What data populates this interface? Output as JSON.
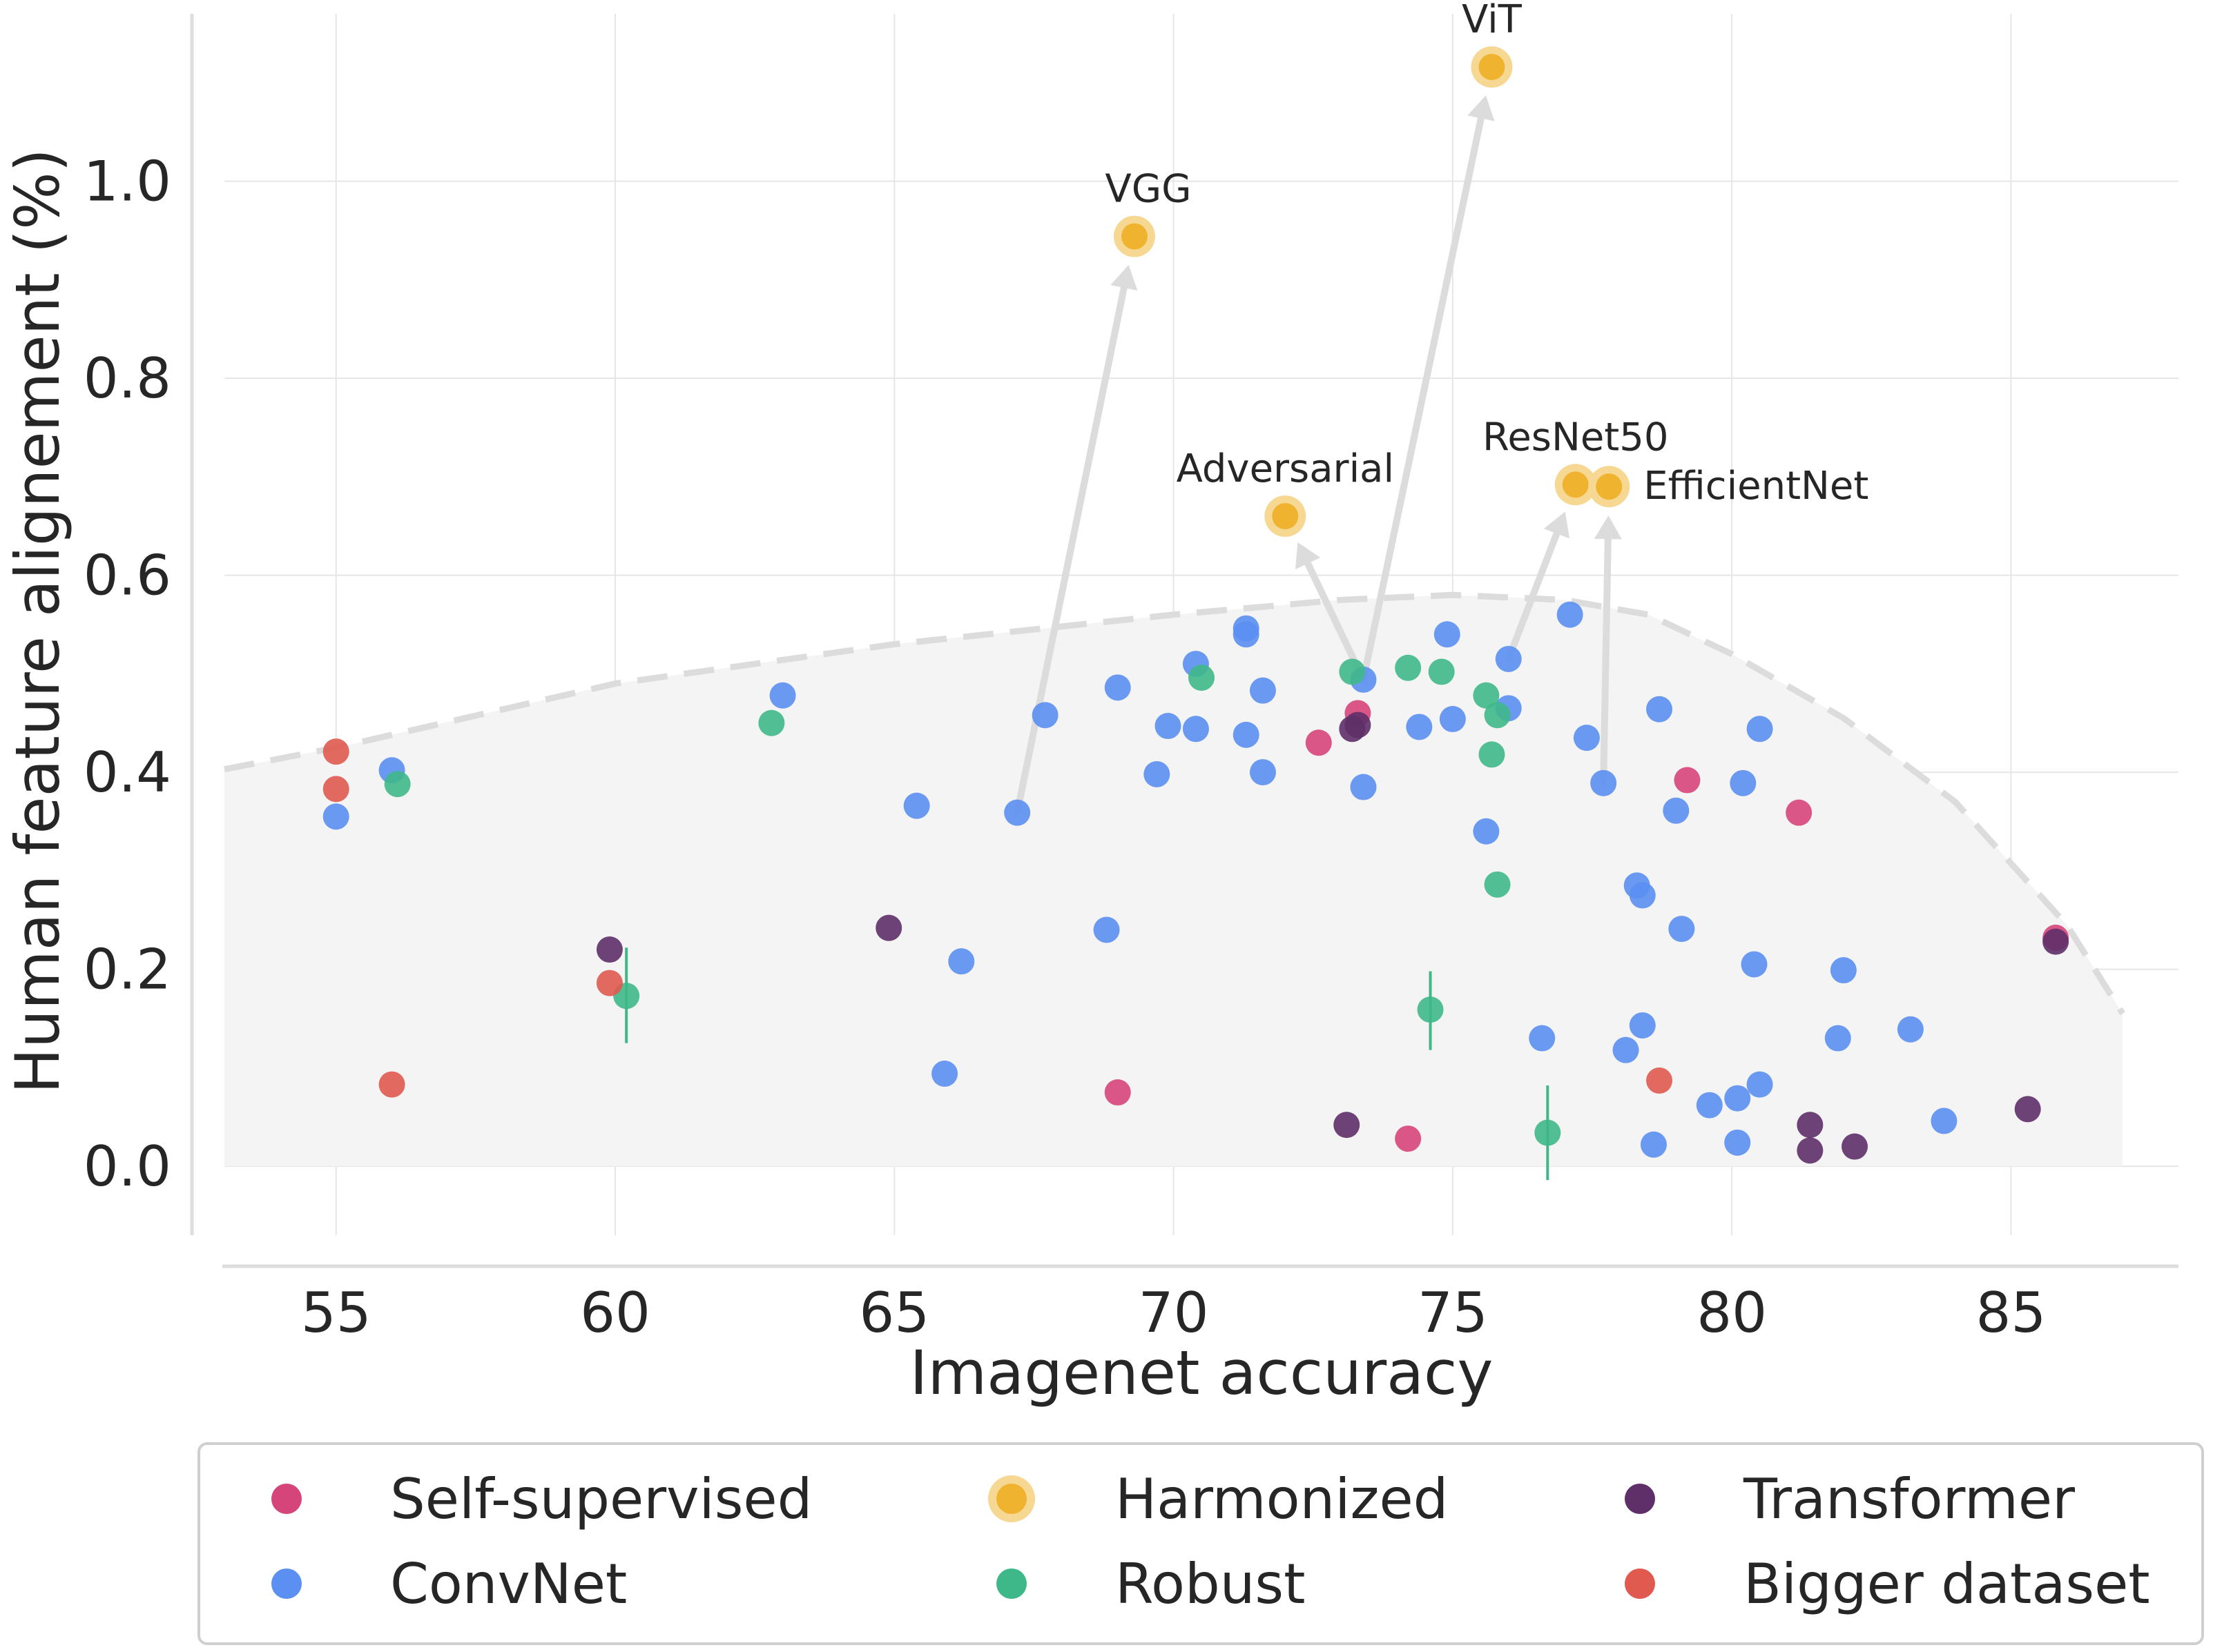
{
  "chart_data": {
    "type": "scatter",
    "xlabel": "Imagenet accuracy",
    "ylabel": "Human feature alignement (%)",
    "xlim": [
      53,
      88
    ],
    "ylim": [
      -0.07,
      1.17
    ],
    "x_ticks": [
      55,
      60,
      65,
      70,
      75,
      80,
      85
    ],
    "y_ticks": [
      0.0,
      0.2,
      0.4,
      0.6,
      0.8,
      1.0
    ],
    "x_tick_labels": [
      "55",
      "60",
      "65",
      "70",
      "75",
      "80",
      "85"
    ],
    "y_tick_labels": [
      "0.0",
      "0.2",
      "0.4",
      "0.6",
      "0.8",
      "1.0"
    ],
    "grid": true,
    "legend_position": "bottom",
    "series": [
      {
        "name": "Self-supervised",
        "color": "#d6457a",
        "points": [
          [
            72.6,
            0.43
          ],
          [
            73.3,
            0.46
          ],
          [
            79.2,
            0.392
          ],
          [
            81.2,
            0.359
          ],
          [
            69.0,
            0.075
          ],
          [
            74.2,
            0.028
          ],
          [
            85.8,
            0.232
          ]
        ]
      },
      {
        "name": "ConvNet",
        "color": "#5b8ff2",
        "points": [
          [
            55.0,
            0.355
          ],
          [
            56.0,
            0.402
          ],
          [
            63.0,
            0.478
          ],
          [
            65.4,
            0.366
          ],
          [
            66.2,
            0.208
          ],
          [
            65.9,
            0.094
          ],
          [
            67.2,
            0.359
          ],
          [
            67.7,
            0.458
          ],
          [
            68.8,
            0.24
          ],
          [
            69.0,
            0.486
          ],
          [
            69.9,
            0.447
          ],
          [
            69.7,
            0.398
          ],
          [
            70.4,
            0.51
          ],
          [
            70.4,
            0.444
          ],
          [
            71.3,
            0.546
          ],
          [
            71.3,
            0.54
          ],
          [
            71.3,
            0.438
          ],
          [
            71.6,
            0.483
          ],
          [
            71.6,
            0.4
          ],
          [
            73.4,
            0.494
          ],
          [
            73.4,
            0.385
          ],
          [
            74.4,
            0.446
          ],
          [
            74.9,
            0.54
          ],
          [
            75.0,
            0.454
          ],
          [
            75.6,
            0.34
          ],
          [
            76.0,
            0.515
          ],
          [
            76.0,
            0.465
          ],
          [
            76.6,
            0.13
          ],
          [
            77.1,
            0.56
          ],
          [
            77.4,
            0.435
          ],
          [
            77.7,
            0.389
          ],
          [
            78.1,
            0.118
          ],
          [
            78.3,
            0.285
          ],
          [
            78.4,
            0.275
          ],
          [
            78.4,
            0.143
          ],
          [
            78.6,
            0.022
          ],
          [
            78.7,
            0.464
          ],
          [
            79.0,
            0.361
          ],
          [
            79.1,
            0.241
          ],
          [
            79.6,
            0.062
          ],
          [
            80.1,
            0.069
          ],
          [
            80.2,
            0.389
          ],
          [
            80.1,
            0.024
          ],
          [
            80.4,
            0.205
          ],
          [
            80.5,
            0.444
          ],
          [
            80.5,
            0.083
          ],
          [
            81.9,
            0.13
          ],
          [
            82.0,
            0.199
          ],
          [
            83.2,
            0.139
          ],
          [
            83.8,
            0.046
          ]
        ]
      },
      {
        "name": "Harmonized",
        "color": "#f0b330",
        "points": [
          [
            69.3,
            0.944
          ],
          [
            75.7,
            1.116
          ],
          [
            72.0,
            0.66
          ],
          [
            77.2,
            0.692
          ],
          [
            77.8,
            0.69
          ]
        ]
      },
      {
        "name": "Robust",
        "color": "#3fb889",
        "points": [
          [
            56.1,
            0.388
          ],
          [
            62.8,
            0.45
          ],
          [
            60.2,
            0.173
          ],
          [
            70.5,
            0.496
          ],
          [
            73.2,
            0.502
          ],
          [
            74.2,
            0.506
          ],
          [
            74.8,
            0.502
          ],
          [
            75.6,
            0.478
          ],
          [
            75.7,
            0.418
          ],
          [
            75.8,
            0.458
          ],
          [
            75.8,
            0.286
          ],
          [
            74.6,
            0.159
          ],
          [
            76.7,
            0.034
          ]
        ]
      },
      {
        "name": "Transformer",
        "color": "#5e2f68",
        "points": [
          [
            59.9,
            0.22
          ],
          [
            64.9,
            0.242
          ],
          [
            73.1,
            0.042
          ],
          [
            73.2,
            0.444
          ],
          [
            73.3,
            0.448
          ],
          [
            81.4,
            0.042
          ],
          [
            81.4,
            0.016
          ],
          [
            82.2,
            0.02
          ],
          [
            85.3,
            0.058
          ],
          [
            85.8,
            0.228
          ]
        ]
      },
      {
        "name": "Bigger dataset",
        "color": "#e05a50",
        "points": [
          [
            55.0,
            0.421
          ],
          [
            55.0,
            0.383
          ],
          [
            56.0,
            0.083
          ],
          [
            59.9,
            0.186
          ],
          [
            78.7,
            0.087
          ]
        ]
      }
    ],
    "error_bars": [
      {
        "x": 60.2,
        "y_low": 0.125,
        "y_high": 0.222,
        "color": "#3fb889"
      },
      {
        "x": 74.6,
        "y_low": 0.118,
        "y_high": 0.198,
        "color": "#3fb889"
      },
      {
        "x": 76.7,
        "y_low": -0.014,
        "y_high": 0.082,
        "color": "#3fb889"
      }
    ],
    "annotations": [
      {
        "text": "VGG",
        "x": 69.3,
        "y": 0.944,
        "label_pos": "above"
      },
      {
        "text": "ViT",
        "x": 75.7,
        "y": 1.116,
        "label_pos": "above"
      },
      {
        "text": "Adversarial",
        "x": 72.0,
        "y": 0.66,
        "label_pos": "above"
      },
      {
        "text": "ResNet50",
        "x": 77.2,
        "y": 0.692,
        "label_pos": "above"
      },
      {
        "text": "EfficientNet",
        "x": 77.8,
        "y": 0.69,
        "label_pos": "right"
      }
    ],
    "arrows": [
      {
        "from": [
          67.2,
          0.359
        ],
        "to": [
          69.3,
          0.944
        ]
      },
      {
        "from": [
          73.4,
          0.494
        ],
        "to": [
          75.7,
          1.116
        ]
      },
      {
        "from": [
          73.4,
          0.494
        ],
        "to": [
          72.0,
          0.66
        ]
      },
      {
        "from": [
          76.0,
          0.515
        ],
        "to": [
          77.2,
          0.692
        ]
      },
      {
        "from": [
          77.7,
          0.389
        ],
        "to": [
          77.8,
          0.69
        ]
      }
    ],
    "frontier": [
      [
        53,
        0.403
      ],
      [
        55,
        0.425
      ],
      [
        60,
        0.49
      ],
      [
        65,
        0.53
      ],
      [
        70,
        0.56
      ],
      [
        73,
        0.575
      ],
      [
        75,
        0.58
      ],
      [
        77,
        0.575
      ],
      [
        78.5,
        0.56
      ],
      [
        80,
        0.52
      ],
      [
        82,
        0.455
      ],
      [
        84,
        0.37
      ],
      [
        86,
        0.245
      ],
      [
        87,
        0.155
      ]
    ],
    "frontier_fill_bottom": 0.0,
    "legend_layout": [
      "Self-supervised",
      "Harmonized",
      "Transformer",
      "ConvNet",
      "Robust",
      "Bigger dataset"
    ]
  }
}
